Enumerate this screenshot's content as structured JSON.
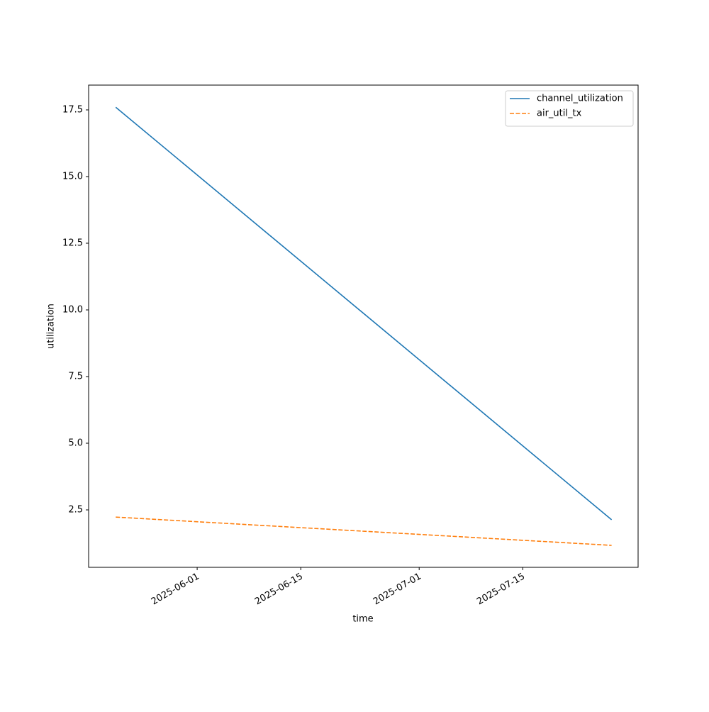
{
  "chart_data": {
    "type": "line",
    "x_label": "time",
    "y_label": "utilization",
    "x": [
      "2025-05-21",
      "2025-07-27"
    ],
    "series": [
      {
        "name": "channel_utilization",
        "color": "#1f77b4",
        "dash": "solid",
        "values": [
          17.6,
          2.13
        ]
      },
      {
        "name": "air_util_tx",
        "color": "#ff7f0e",
        "dash": "dashed",
        "values": [
          2.23,
          1.17
        ]
      }
    ],
    "xlim": [
      "2025-05-17T08:00",
      "2025-07-30T14:00"
    ],
    "xticks": [
      "2025-06-01",
      "2025-06-15",
      "2025-07-01",
      "2025-07-15"
    ],
    "ylim": [
      0.346,
      18.43
    ],
    "yticks": [
      2.5,
      {
        "value": 5,
        "label": "5.0"
      },
      7.5,
      {
        "value": 10,
        "label": "10.0"
      },
      12.5,
      {
        "value": 15,
        "label": "15.0"
      },
      17.5
    ],
    "grid": false,
    "legend": "upper right"
  }
}
